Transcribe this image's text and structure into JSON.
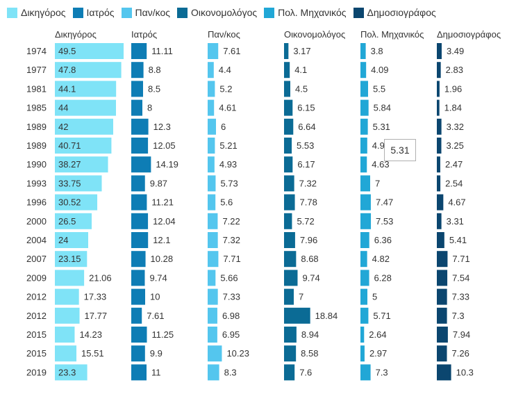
{
  "chart_data": {
    "type": "bar",
    "orientation": "horizontal small multiples",
    "categories": [
      "1974",
      "1977",
      "1981",
      "1985",
      "1989",
      "1989",
      "1990",
      "1993",
      "1996",
      "2000",
      "2004",
      "2007",
      "2009",
      "2012",
      "2012",
      "2015",
      "2015",
      "2019"
    ],
    "series": [
      {
        "name": "Δικηγόρος",
        "color": "#7fe3f7",
        "values": [
          49.5,
          47.8,
          44.1,
          44,
          42,
          40.71,
          38.27,
          33.75,
          30.52,
          26.5,
          24,
          23.15,
          21.06,
          17.33,
          17.77,
          14.23,
          15.51,
          23.3
        ]
      },
      {
        "name": "Ιατρός",
        "color": "#0e7db5",
        "values": [
          11.11,
          8.8,
          8.5,
          8,
          12.3,
          12.05,
          14.19,
          9.87,
          11.21,
          12.04,
          12.1,
          10.28,
          9.74,
          10,
          7.61,
          11.25,
          9.9,
          11
        ]
      },
      {
        "name": "Παν/κος",
        "color": "#54c6ee",
        "values": [
          7.61,
          4.4,
          5.2,
          4.61,
          6,
          5.21,
          4.93,
          5.73,
          5.6,
          7.22,
          7.32,
          7.71,
          5.66,
          7.33,
          6.98,
          6.95,
          10.23,
          8.3
        ]
      },
      {
        "name": "Οικονομολόγος",
        "color": "#0b6b95",
        "values": [
          3.17,
          4.1,
          4.5,
          6.15,
          6.64,
          5.53,
          6.17,
          7.32,
          7.78,
          5.72,
          7.96,
          8.68,
          9.74,
          7,
          18.84,
          8.94,
          8.58,
          7.6
        ]
      },
      {
        "name": "Πολ. Μηχανικός",
        "color": "#21a7d6",
        "values": [
          3.8,
          4.09,
          5.5,
          5.84,
          5.31,
          4.9,
          4.63,
          7,
          7.47,
          7.53,
          6.36,
          4.82,
          6.28,
          5,
          5.71,
          2.64,
          2.97,
          7.3
        ]
      },
      {
        "name": "Δημοσιογράφος",
        "color": "#0b466f",
        "values": [
          3.49,
          2.83,
          1.96,
          1.84,
          3.32,
          3.25,
          2.47,
          2.54,
          4.67,
          3.31,
          5.41,
          7.71,
          7.54,
          7.33,
          7.3,
          7.94,
          7.26,
          10.3
        ]
      }
    ],
    "tooltip": {
      "value": "5.31"
    },
    "grid": false,
    "legend_position": "top-left"
  }
}
